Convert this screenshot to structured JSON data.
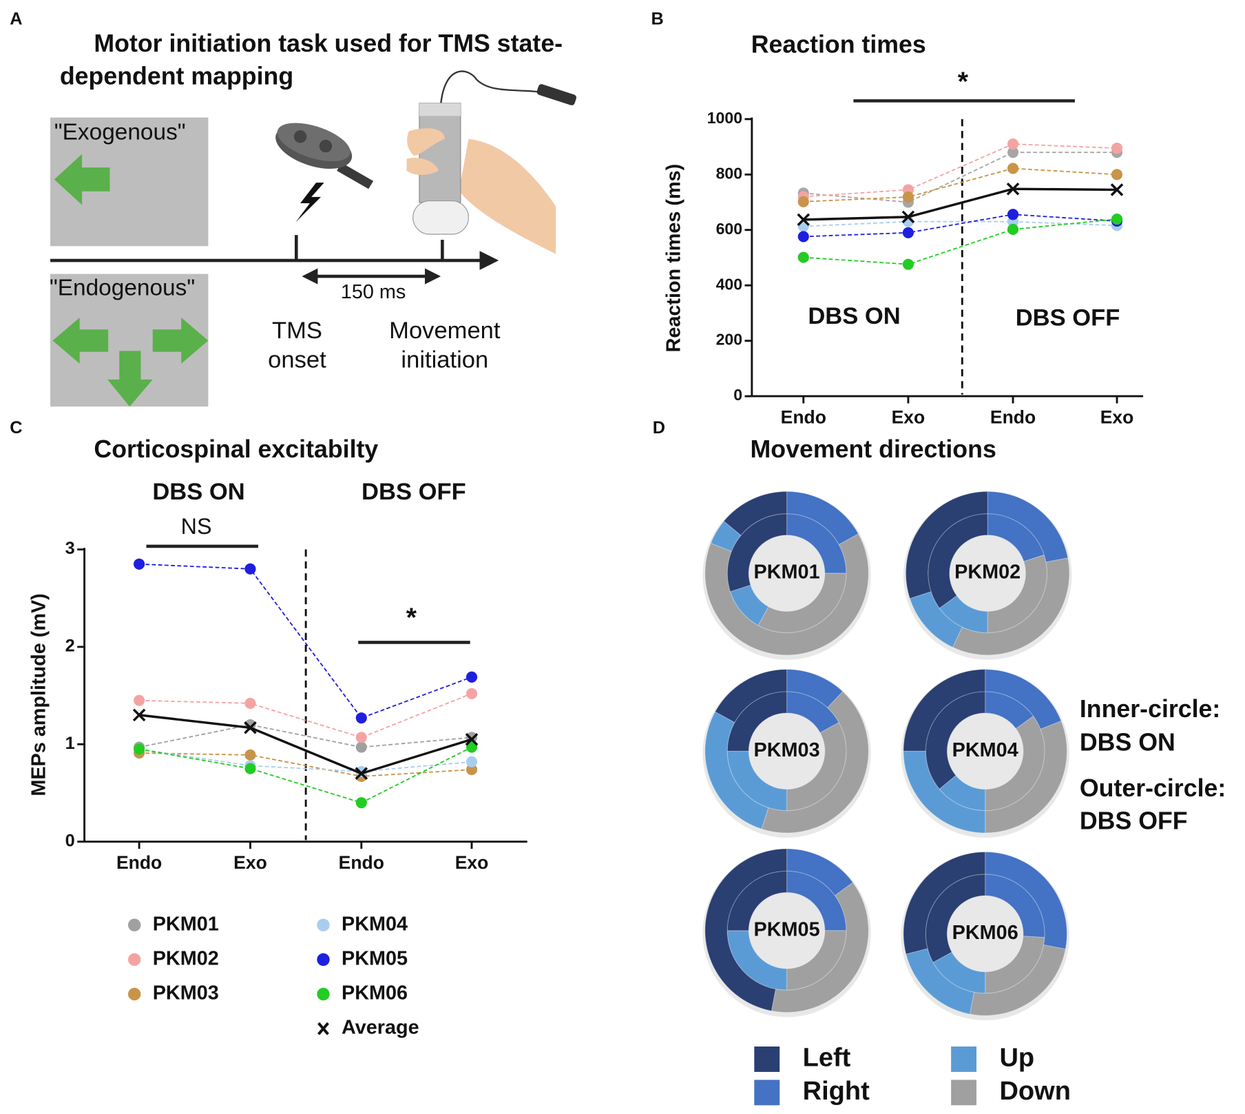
{
  "panel_labels": [
    "A",
    "B",
    "C",
    "D"
  ],
  "diagram": {
    "title_lines": [
      "Motor initiation task used for TMS state-",
      "dependent mapping"
    ],
    "exogenous": "\"Exogenous\"",
    "endogenous": "\"Endogenous\"",
    "interval": "150 ms",
    "tms_onset": [
      "TMS",
      "onset"
    ],
    "movement_initiation": [
      "Movement",
      "initiation"
    ]
  },
  "chart_data": [
    {
      "type": "line",
      "title": "Reaction times",
      "y_label": "Reaction times (ms)",
      "categories": [
        "Endo",
        "Exo",
        "Endo",
        "Exo"
      ],
      "ylim": [
        0,
        1000
      ],
      "yticks": [
        0,
        200,
        400,
        600,
        800,
        1000
      ],
      "annotations": [
        "DBS ON",
        "DBS OFF",
        "*"
      ],
      "series": [
        {
          "color": "#a6a6a6",
          "values": [
            733,
            700,
            880,
            880
          ]
        },
        {
          "color": "#f4a3a3",
          "values": [
            720,
            745,
            910,
            895
          ]
        },
        {
          "color": "#c8944a",
          "values": [
            702,
            719,
            822,
            800
          ]
        },
        {
          "color": "#a9cdf0",
          "values": [
            613,
            630,
            630,
            616
          ]
        },
        {
          "color": "#1f1fe0",
          "values": [
            576,
            590,
            656,
            632
          ]
        },
        {
          "color": "#22cc22",
          "values": [
            501,
            476,
            602,
            639
          ]
        },
        {
          "color": "#111111",
          "marker": "x",
          "values": [
            637,
            647,
            748,
            745
          ]
        }
      ]
    },
    {
      "type": "line",
      "title": "Corticospinal excitabilty",
      "y_label": "MEPs amplitude (mV)",
      "categories": [
        "Endo",
        "Exo",
        "Endo",
        "Exo"
      ],
      "ylim": [
        0,
        3
      ],
      "yticks": [
        0,
        1,
        2,
        3
      ],
      "annotations": [
        "DBS ON",
        "DBS OFF",
        "NS",
        "*"
      ],
      "series": [
        {
          "name": "PKM01",
          "color": "#a0a0a0",
          "values": [
            0.97,
            1.2,
            0.97,
            1.07
          ]
        },
        {
          "name": "PKM02",
          "color": "#f4a3a3",
          "values": [
            1.45,
            1.42,
            1.07,
            1.52
          ]
        },
        {
          "name": "PKM03",
          "color": "#c8944a",
          "values": [
            0.91,
            0.89,
            0.67,
            0.74
          ]
        },
        {
          "name": "PKM04",
          "color": "#a9cdf0",
          "values": [
            0.95,
            0.78,
            0.72,
            0.82
          ]
        },
        {
          "name": "PKM05",
          "color": "#1f1fe0",
          "values": [
            2.85,
            2.8,
            1.27,
            1.69
          ]
        },
        {
          "name": "PKM06",
          "color": "#22cc22",
          "values": [
            0.95,
            0.75,
            0.4,
            0.97
          ]
        },
        {
          "name": "Average",
          "color": "#111111",
          "marker": "x",
          "values": [
            1.3,
            1.17,
            0.7,
            1.05
          ]
        }
      ]
    },
    {
      "type": "donut",
      "title": "Movement directions",
      "categories": [
        "Left",
        "Right",
        "Up",
        "Down"
      ],
      "colors": [
        "#2a3f72",
        "#4472c4",
        "#5b9bd5",
        "#a0a0a0"
      ],
      "annotations": [
        "Inner-circle:",
        "DBS ON",
        "Outer-circle:",
        "DBS OFF"
      ],
      "charts": [
        {
          "name": "PKM01",
          "inner": [
            30,
            25,
            12,
            33
          ],
          "outer": [
            14,
            17,
            5,
            64
          ]
        },
        {
          "name": "PKM02",
          "inner": [
            35,
            20,
            15,
            30
          ],
          "outer": [
            30,
            22,
            13,
            35
          ]
        },
        {
          "name": "PKM03",
          "inner": [
            25,
            17,
            25,
            33
          ],
          "outer": [
            17,
            12,
            28,
            43
          ]
        },
        {
          "name": "PKM04",
          "inner": [
            36,
            15,
            14,
            35
          ],
          "outer": [
            25,
            19,
            25,
            31
          ]
        },
        {
          "name": "PKM05",
          "inner": [
            25,
            25,
            25,
            25
          ],
          "outer": [
            47,
            15,
            0,
            38
          ]
        },
        {
          "name": "PKM06",
          "inner": [
            33,
            26,
            17,
            24
          ],
          "outer": [
            29,
            28,
            18,
            25
          ]
        }
      ]
    }
  ]
}
